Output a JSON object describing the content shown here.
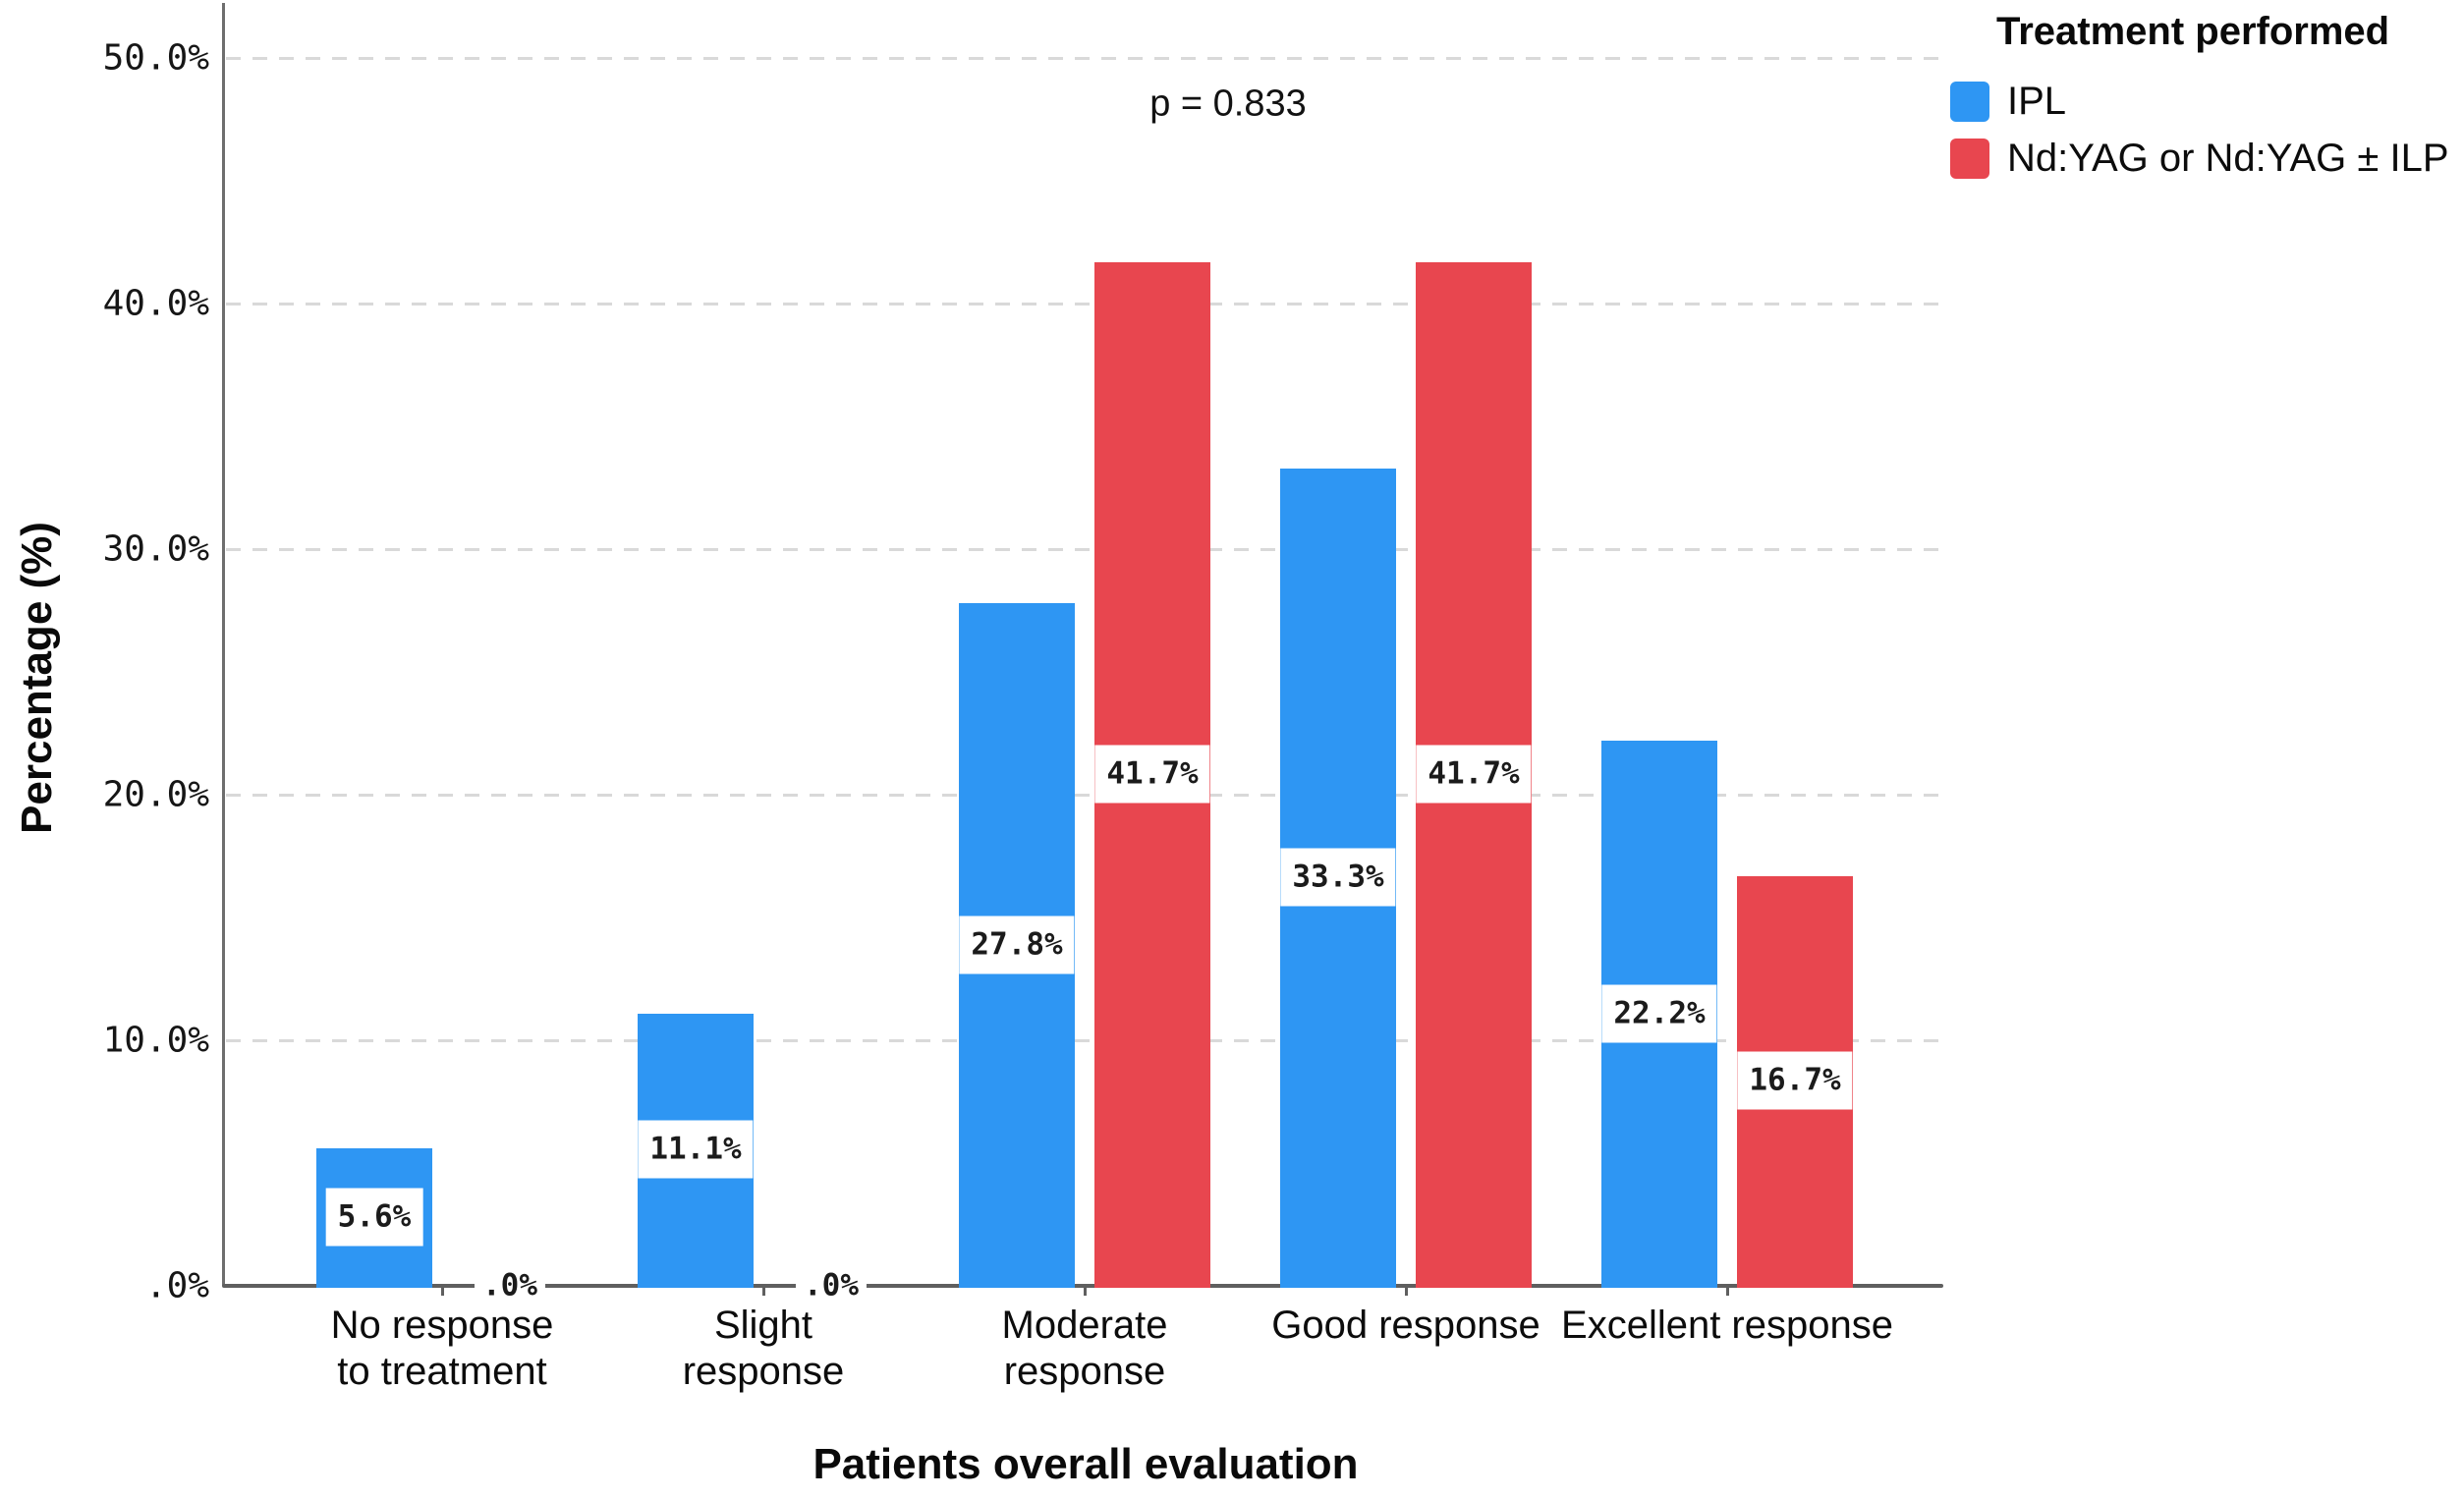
{
  "chart_data": {
    "type": "bar",
    "title": "",
    "xlabel": "Patients overall evaluation",
    "ylabel": "Percentage (%)",
    "annotation": "p = 0.833",
    "categories": [
      {
        "lines": [
          "No response",
          "to treatment"
        ]
      },
      {
        "lines": [
          "Slight",
          "response"
        ]
      },
      {
        "lines": [
          "Moderate",
          "response"
        ]
      },
      {
        "lines": [
          "Good response"
        ]
      },
      {
        "lines": [
          "Excellent response"
        ]
      }
    ],
    "series": [
      {
        "name": "IPL",
        "color": "#2e96f3",
        "values": [
          5.6,
          11.1,
          27.8,
          33.3,
          22.2
        ],
        "value_labels": [
          "5.6%",
          "11.1%",
          "27.8%",
          "33.3%",
          "22.2%"
        ]
      },
      {
        "name": "Nd:YAG or Nd:YAG ± ILP",
        "color": "#e8464f",
        "values": [
          0,
          0,
          41.7,
          41.7,
          16.7
        ],
        "value_labels": [
          ".0%",
          ".0%",
          "41.7%",
          "41.7%",
          "16.7%"
        ]
      }
    ],
    "y_axis": {
      "tick_values": [
        0,
        10,
        20,
        30,
        40,
        50
      ],
      "tick_labels": [
        ".0%",
        "10.0%",
        "20.0%",
        "30.0%",
        "40.0%",
        "50.0%"
      ],
      "ylim": [
        0,
        52.3
      ]
    },
    "grid": {
      "horizontal": true,
      "style": "dashed",
      "color": "#d9d9d9"
    },
    "legend": {
      "title": "Treatment performed",
      "position": "top-right"
    }
  }
}
